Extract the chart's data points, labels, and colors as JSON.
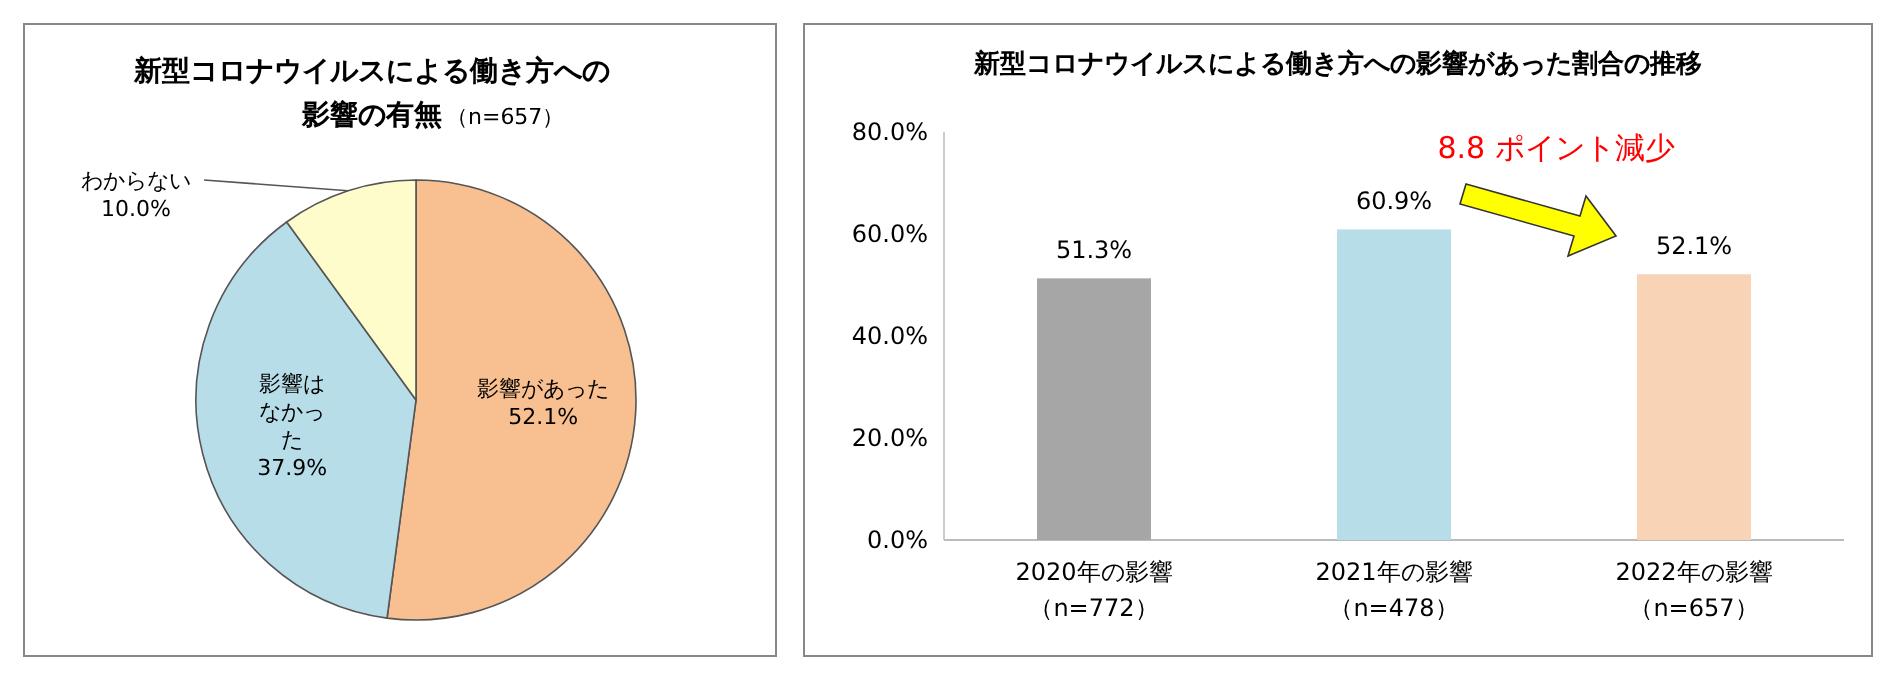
{
  "chart_data": [
    {
      "type": "pie",
      "title": "新型コロナウイルスによる働き方への影響の有無",
      "subtitle": "（n=657）",
      "categories": [
        "影響があった",
        "影響はなかった",
        "わからない"
      ],
      "values": [
        52.1,
        37.9,
        10.0
      ],
      "value_labels": [
        "52.1%",
        "37.9%",
        "10.0%"
      ],
      "colors": [
        "#f8bf90",
        "#b7dde8",
        "#fffccc"
      ],
      "legend": false
    },
    {
      "type": "bar",
      "title": "新型コロナウイルスによる働き方への影響があった割合の推移",
      "categories": [
        "2020年の影響（n=772）",
        "2021年の影響（n=478）",
        "2022年の影響（n=657）"
      ],
      "values": [
        51.3,
        60.9,
        52.1
      ],
      "value_labels": [
        "51.3%",
        "60.9%",
        "52.1%"
      ],
      "colors": [
        "#a6a6a6",
        "#b7dde8",
        "#f9d3b5"
      ],
      "ylim": [
        0,
        80
      ],
      "yticks": [
        {
          "value": 0,
          "label": "0.0%"
        },
        {
          "value": 20,
          "label": "20.0%"
        },
        {
          "value": 40,
          "label": "40.0%"
        },
        {
          "value": 60,
          "label": "60.0%"
        },
        {
          "value": 80,
          "label": "80.0%"
        }
      ],
      "annotations": [
        "8.8 ポイント減少"
      ],
      "grid": false,
      "legend": false
    }
  ]
}
